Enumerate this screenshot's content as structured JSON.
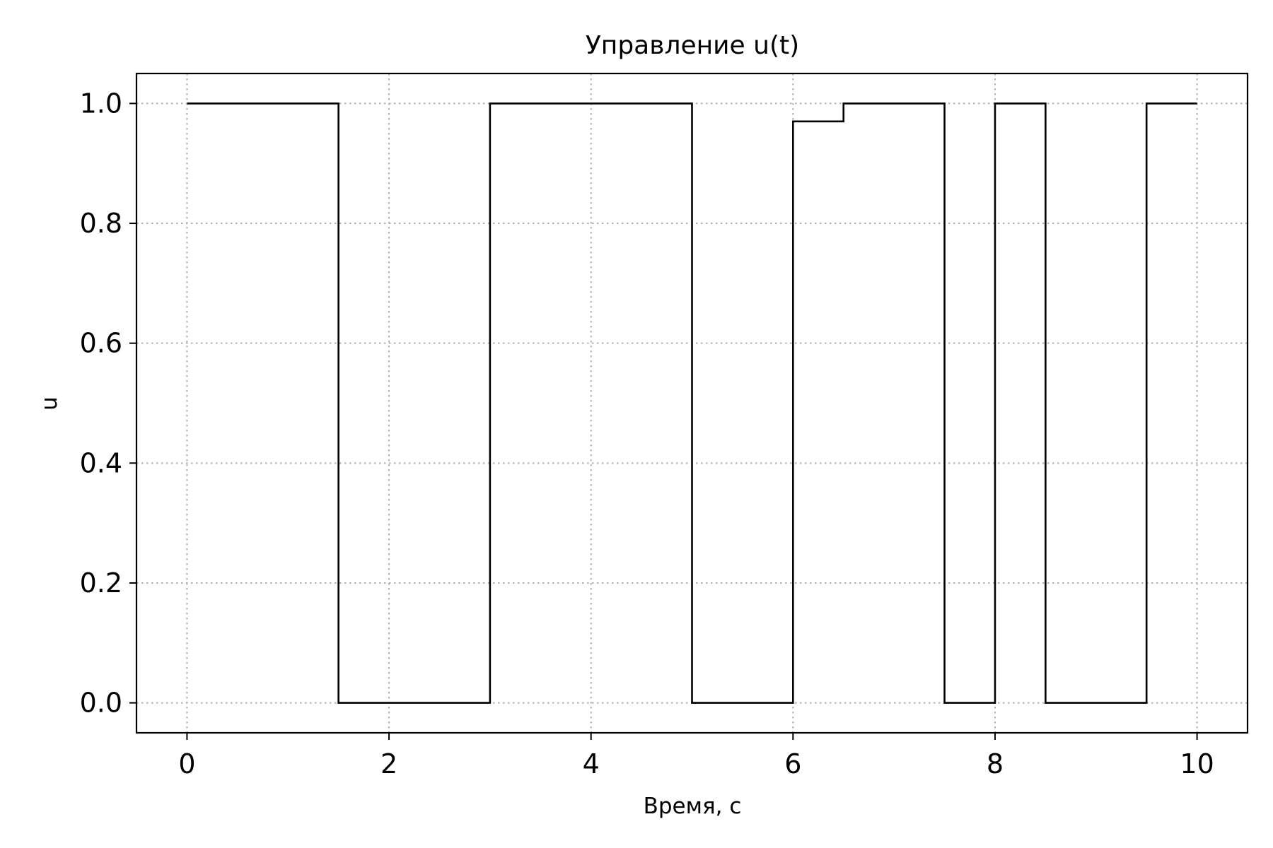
{
  "chart_data": {
    "type": "line",
    "step": "post",
    "title": "Управление u(t)",
    "xlabel": "Время, с",
    "ylabel": "u",
    "xlim": [
      -0.5,
      10.5
    ],
    "ylim": [
      -0.05,
      1.05
    ],
    "xticks": [
      0,
      2,
      4,
      6,
      8,
      10
    ],
    "xtick_labels": [
      "0",
      "2",
      "4",
      "6",
      "8",
      "10"
    ],
    "yticks": [
      0.0,
      0.2,
      0.4,
      0.6,
      0.8,
      1.0
    ],
    "ytick_labels": [
      "0.0",
      "0.2",
      "0.4",
      "0.6",
      "0.8",
      "1.0"
    ],
    "grid": true,
    "line_color": "#000000",
    "grid_color": "#b0b0b0",
    "series": [
      {
        "x": [
          0,
          1.5,
          3.0,
          5.0,
          6.0,
          6.5,
          7.5,
          8.0,
          8.5,
          9.5,
          10.0
        ],
        "values": [
          1.0,
          0.0,
          1.0,
          0.0,
          0.97,
          1.0,
          0.0,
          1.0,
          0.0,
          1.0,
          1.0
        ]
      }
    ]
  }
}
